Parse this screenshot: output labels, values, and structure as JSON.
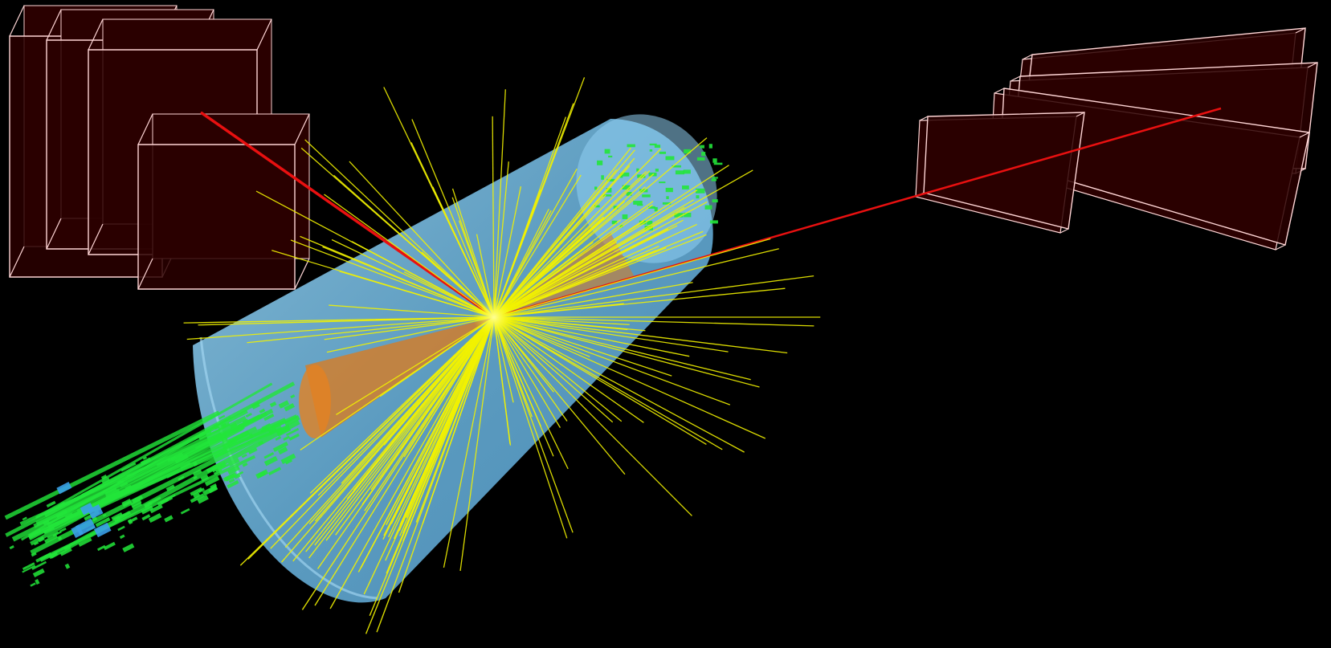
{
  "image": {
    "kind": "particle-collision-event-display",
    "background_color": "#000000",
    "caption_text": ""
  },
  "colors": {
    "barrel": "#7cc4ef",
    "barrel_edge": "#a8dcf7",
    "tracks": "#f2f200",
    "calorimeter_hits": "#22e63a",
    "muon_chamber_fill": "#2a0000",
    "muon_chamber_edge": "#ffd6d6",
    "muon_track": "#e81010",
    "jet_cone": "#e07a18",
    "hit_blue": "#3aa0e8"
  },
  "objects": [
    "detector-barrel",
    "yellow-tracks",
    "green-calorimeter-deposits",
    "orange-jet-cones",
    "muon-chambers-left",
    "muon-chambers-right",
    "red-muon-tracks"
  ]
}
